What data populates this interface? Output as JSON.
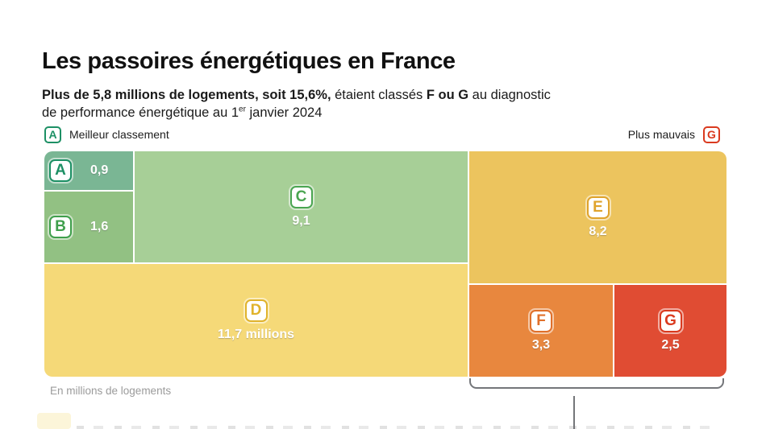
{
  "header": {
    "title": "Les passoires énergétiques en France",
    "subtitle": {
      "bold_lead": "Plus de 5,8 millions de logements, soit 15,6%,",
      "mid": " étaient classés ",
      "bold_fg": "F ou G",
      "tail_line1": " au diagnostic",
      "tail_line2": "de performance énergétique au 1",
      "sup": "er",
      "tail_end": " janvier 2024"
    }
  },
  "legend": {
    "best_badge": "A",
    "best_label": "Meilleur classement",
    "worst_label": "Plus mauvais",
    "worst_badge": "G"
  },
  "treemap": {
    "blocks": {
      "a": {
        "letter": "A",
        "value": "0,9",
        "bg": "#7ab694",
        "fg": "#1d9065"
      },
      "b": {
        "letter": "B",
        "value": "1,6",
        "bg": "#92c183",
        "fg": "#3f9f4c"
      },
      "c": {
        "letter": "C",
        "value": "9,1",
        "bg": "#a7cf97",
        "fg": "#4aa551"
      },
      "d": {
        "letter": "D",
        "value": "11,7 millions",
        "bg": "#f5d978",
        "fg": "#e0b32c"
      },
      "e": {
        "letter": "E",
        "value": "8,2",
        "bg": "#ecc45e",
        "fg": "#dfa32b"
      },
      "f": {
        "letter": "F",
        "value": "3,3",
        "bg": "#e8873e",
        "fg": "#e0702b"
      },
      "g": {
        "letter": "G",
        "value": "2,5",
        "bg": "#e04c33",
        "fg": "#da3a1f"
      }
    }
  },
  "footnote": "En millions de logements",
  "colors": {
    "bracket": "#74767a",
    "connector": "#74767a"
  },
  "chart_data": {
    "type": "treemap",
    "title": "Les passoires énergétiques en France",
    "subtitle": "Plus de 5,8 millions de logements, soit 15,6%, étaient classés F ou G au diagnostic de performance énergétique au 1er janvier 2024",
    "categories": [
      "A",
      "B",
      "C",
      "D",
      "E",
      "F",
      "G"
    ],
    "values": [
      0.9,
      1.6,
      9.1,
      11.7,
      8.2,
      3.3,
      2.5
    ],
    "value_labels": [
      "0,9",
      "1,6",
      "9,1",
      "11,7 millions",
      "8,2",
      "3,3",
      "2,5"
    ],
    "unit": "En millions de logements",
    "colors": [
      "#7ab694",
      "#92c183",
      "#a7cf97",
      "#f5d978",
      "#ecc45e",
      "#e8873e",
      "#e04c33"
    ],
    "legend": {
      "best": "A Meilleur classement",
      "worst": "Plus mauvais G"
    },
    "annotation": "accolade regroupant F et G"
  }
}
